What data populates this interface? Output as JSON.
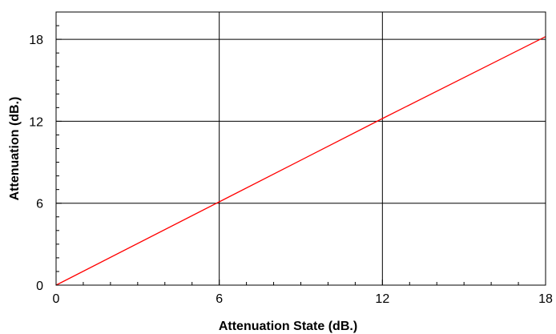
{
  "chart_data": {
    "type": "line",
    "title": "",
    "xlabel": "Attenuation State (dB.)",
    "ylabel": "Attenuation (dB.)",
    "xlim": [
      0,
      18
    ],
    "ylim": [
      0,
      20
    ],
    "x_ticks": [
      0,
      6,
      12,
      18
    ],
    "y_ticks": [
      0,
      6,
      12,
      18
    ],
    "x_tick_labels": [
      "0",
      "6",
      "12",
      "18"
    ],
    "y_tick_labels": [
      "0",
      "6",
      "12",
      "18"
    ],
    "grid": true,
    "legend": "none",
    "series": [
      {
        "color": "#ff0000",
        "x": [
          0,
          6,
          12,
          18
        ],
        "y": [
          0,
          6.1,
          12.2,
          18.2
        ]
      }
    ]
  },
  "colors": {
    "series": "#ff0000",
    "grid": "#000000",
    "axis": "#000000",
    "background": "#ffffff"
  }
}
